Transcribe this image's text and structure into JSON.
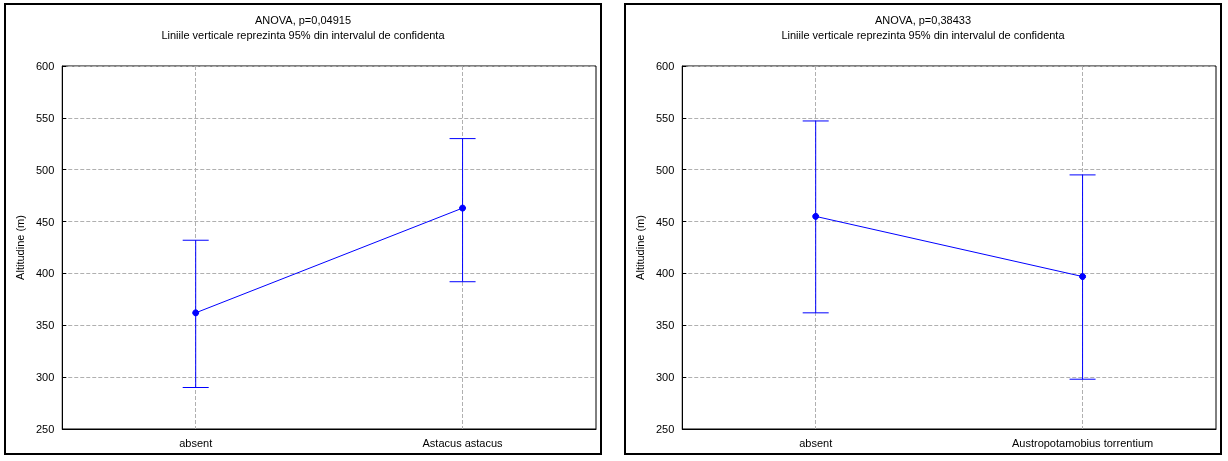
{
  "chart_data": [
    {
      "type": "line",
      "title": "ANOVA, p=0,04915",
      "subtitle": "Liniile verticale reprezinta 95% din intervalul de confidenta",
      "ylabel": "Altitudine (m)",
      "categories": [
        "absent",
        "Astacus astacus"
      ],
      "series": [
        {
          "color": "#0000ff",
          "values": [
            362,
            463
          ],
          "errors": [
            [
              290,
              432
            ],
            [
              392,
              530
            ]
          ]
        }
      ],
      "ylim": [
        250,
        600
      ],
      "yticks": [
        250,
        300,
        350,
        400,
        450,
        500,
        550,
        600
      ],
      "grid": true,
      "marker": "circle",
      "line_style": "solid"
    },
    {
      "type": "line",
      "title": "ANOVA, p=0,38433",
      "subtitle": "Liniile verticale reprezinta 95% din intervalul de confidenta",
      "ylabel": "Altitudine (m)",
      "categories": [
        "absent",
        "Austropotamobius torrentium"
      ],
      "series": [
        {
          "color": "#0000ff",
          "values": [
            455,
            397
          ],
          "errors": [
            [
              362,
              547
            ],
            [
              298,
              495
            ]
          ]
        }
      ],
      "ylim": [
        250,
        600
      ],
      "yticks": [
        250,
        300,
        350,
        400,
        450,
        500,
        550,
        600
      ],
      "grid": true,
      "marker": "circle",
      "line_style": "solid"
    }
  ]
}
